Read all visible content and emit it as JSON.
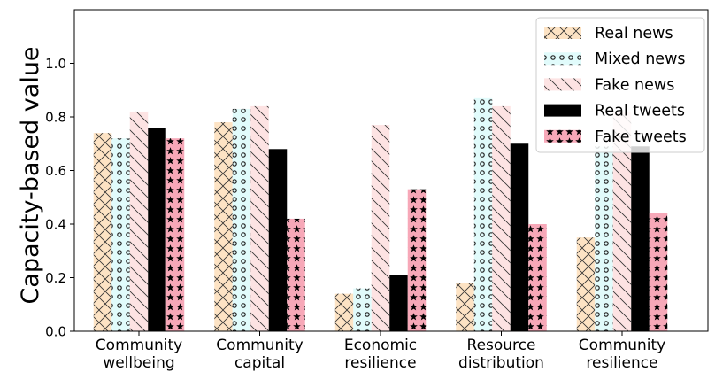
{
  "chart_data": {
    "type": "bar",
    "ylabel": "Capacity-based value",
    "ylim": [
      0,
      1.2
    ],
    "yticks": [
      "0.0",
      "0.2",
      "0.4",
      "0.6",
      "0.8",
      "1.0"
    ],
    "categories": [
      [
        "Community",
        "wellbeing"
      ],
      [
        "Community",
        "capital"
      ],
      [
        "Economic",
        "resilience"
      ],
      [
        "Resource",
        "distribution"
      ],
      [
        "Community",
        "resilience"
      ]
    ],
    "series": [
      {
        "name": "Real news",
        "values": [
          0.74,
          0.78,
          0.14,
          0.18,
          0.35
        ],
        "color": "#fde3c4",
        "hatch": "cross"
      },
      {
        "name": "Mixed news",
        "values": [
          0.72,
          0.83,
          0.16,
          0.87,
          0.69
        ],
        "color": "#e1fbfb",
        "hatch": "circles"
      },
      {
        "name": "Fake news",
        "values": [
          0.82,
          0.84,
          0.77,
          0.84,
          0.82
        ],
        "color": "#fde3e3",
        "hatch": "backslash"
      },
      {
        "name": "Real tweets",
        "values": [
          0.76,
          0.68,
          0.21,
          0.7,
          0.69
        ],
        "color": "#000000",
        "hatch": "none"
      },
      {
        "name": "Fake tweets",
        "values": [
          0.72,
          0.42,
          0.53,
          0.4,
          0.44
        ],
        "color": "#f7a8b8",
        "hatch": "stars"
      }
    ],
    "legend_position": "top-right",
    "grid": false
  }
}
